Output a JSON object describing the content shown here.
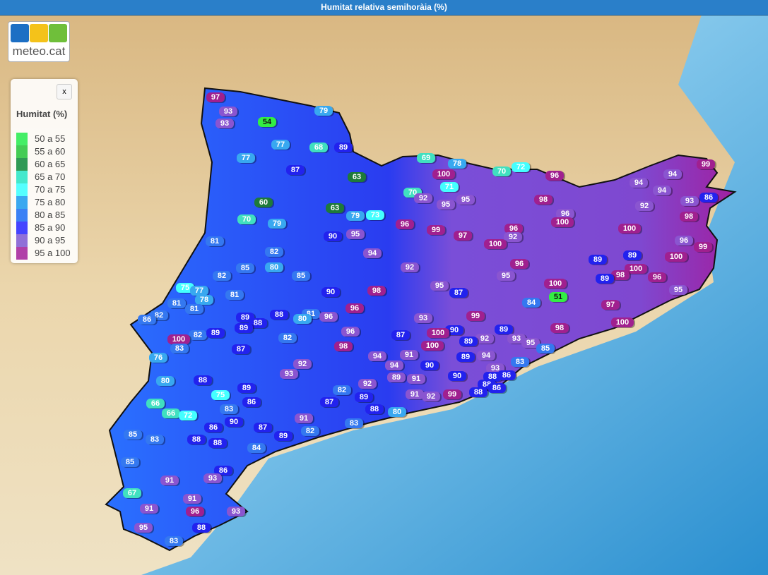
{
  "header": {
    "title": "Humitat relativa semihoràia (%)"
  },
  "logo": {
    "text": "meteo.cat"
  },
  "legend": {
    "close": "x",
    "title": "Humitat (%)",
    "items": [
      {
        "label": "50 a 55",
        "color": "#44ee66"
      },
      {
        "label": "55 a 60",
        "color": "#44cc55"
      },
      {
        "label": "60 a 65",
        "color": "#2f9a55"
      },
      {
        "label": "65 a 70",
        "color": "#44e8cc"
      },
      {
        "label": "70 a 75",
        "color": "#55ffff"
      },
      {
        "label": "75 a 80",
        "color": "#3aa8f0"
      },
      {
        "label": "80 a 85",
        "color": "#3a80f5"
      },
      {
        "label": "85 a 90",
        "color": "#4444ff"
      },
      {
        "label": "90 a 95",
        "color": "#9070d8"
      },
      {
        "label": "95 a 100",
        "color": "#b040a8"
      }
    ]
  },
  "stations": {
    "values": [
      97,
      93,
      93,
      54,
      79,
      77,
      68,
      89,
      77,
      87,
      63,
      69,
      78,
      100,
      70,
      72,
      96,
      99,
      94,
      94,
      94,
      86,
      93,
      92,
      98,
      71,
      70,
      92,
      95,
      95,
      98,
      96,
      100,
      60,
      63,
      79,
      73,
      70,
      79,
      96,
      99,
      97,
      96,
      92,
      100,
      96,
      99,
      90,
      95,
      100,
      81,
      82,
      94,
      100,
      89,
      96,
      89,
      85,
      80,
      92,
      100,
      98,
      82,
      85,
      95,
      89,
      96,
      95,
      100,
      75,
      77,
      81,
      90,
      98,
      87,
      95,
      78,
      51,
      81,
      84,
      97,
      81,
      81,
      88,
      96,
      82,
      86,
      89,
      80,
      96,
      93,
      99,
      88,
      89,
      100,
      98,
      90,
      87,
      100,
      96,
      89,
      82,
      89,
      82,
      92,
      93,
      89,
      100,
      95,
      83,
      87,
      98,
      100,
      85,
      94,
      91,
      89,
      94,
      76,
      83,
      92,
      94,
      90,
      93,
      93,
      89,
      91,
      90,
      88,
      86,
      80,
      88,
      92,
      89,
      88,
      86,
      88,
      82,
      75,
      91,
      92,
      99,
      89,
      86,
      87,
      66,
      83,
      88,
      80,
      66,
      72,
      91,
      90,
      83,
      86,
      87,
      82,
      89,
      85,
      83,
      88,
      88,
      84,
      85,
      86,
      91,
      93,
      67,
      91,
      91,
      96,
      93,
      95,
      88,
      83
    ],
    "colors": [
      "#a0208f",
      "#8a55d0",
      "#8a55d0",
      "#33ee44",
      "#38a8f0",
      "#38a8f0",
      "#40e0c0",
      "#2222ee",
      "#38a8f0",
      "#2222ee",
      "#1e7a3a",
      "#40e0c0",
      "#38a8f0",
      "#a0208f",
      "#40e0c0",
      "#44ffff",
      "#a0208f",
      "#a0208f",
      "#8a55d0",
      "#8a55d0",
      "#8a55d0",
      "#2222ee",
      "#8a55d0",
      "#8a55d0",
      "#a0208f",
      "#44ffff",
      "#40e0c0",
      "#8a55d0",
      "#8a55d0",
      "#8a55d0",
      "#a0208f",
      "#8a55d0",
      "#a0208f",
      "#1e7a3a",
      "#1e7a3a",
      "#38a8f0",
      "#44ffff",
      "#40e0c0",
      "#38a8f0",
      "#a0208f",
      "#a0208f",
      "#a0208f",
      "#a0208f",
      "#8a55d0",
      "#a0208f",
      "#8a55d0",
      "#a0208f",
      "#2222ee",
      "#8a55d0",
      "#a0208f",
      "#3478f0",
      "#3478f0",
      "#8a55d0",
      "#a0208f",
      "#2222ee",
      "#a0208f",
      "#2222ee",
      "#3478f0",
      "#38a8f0",
      "#8a55d0",
      "#a0208f",
      "#a0208f",
      "#3478f0",
      "#3478f0",
      "#8a55d0",
      "#2222ee",
      "#a0208f",
      "#8a55d0",
      "#a0208f",
      "#44ffff",
      "#38a8f0",
      "#3478f0",
      "#2222ee",
      "#a0208f",
      "#2222ee",
      "#8a55d0",
      "#38a8f0",
      "#33ee44",
      "#3478f0",
      "#3478f0",
      "#a0208f",
      "#3478f0",
      "#3478f0",
      "#2222ee",
      "#a0208f",
      "#3478f0",
      "#3478f0",
      "#2222ee",
      "#38a8f0",
      "#8a55d0",
      "#8a55d0",
      "#a0208f",
      "#2222ee",
      "#2222ee",
      "#a0208f",
      "#a0208f",
      "#2222ee",
      "#2222ee",
      "#a0208f",
      "#8a55d0",
      "#2222ee",
      "#3478f0",
      "#2222ee",
      "#3478f0",
      "#8a55d0",
      "#8a55d0",
      "#2222ee",
      "#a0208f",
      "#8a55d0",
      "#3478f0",
      "#2222ee",
      "#a0208f",
      "#a0208f",
      "#3478f0",
      "#8a55d0",
      "#8a55d0",
      "#2222ee",
      "#8a55d0",
      "#38a8f0",
      "#3478f0",
      "#8a55d0",
      "#8a55d0",
      "#2222ee",
      "#8a55d0",
      "#8a55d0",
      "#8a55d0",
      "#8a55d0",
      "#2222ee",
      "#2222ee",
      "#2222ee",
      "#38a8f0",
      "#2222ee",
      "#8a55d0",
      "#2222ee",
      "#2222ee",
      "#2222ee",
      "#2222ee",
      "#3478f0",
      "#44ffff",
      "#8a55d0",
      "#8a55d0",
      "#a0208f",
      "#2222ee",
      "#2222ee",
      "#2222ee",
      "#40e0c0",
      "#3478f0",
      "#2222ee",
      "#38a8f0",
      "#40e0c0",
      "#44ffff",
      "#8a55d0",
      "#2222ee",
      "#3478f0",
      "#2222ee",
      "#2222ee",
      "#3478f0",
      "#2222ee",
      "#3478f0",
      "#3478f0",
      "#2222ee",
      "#2222ee",
      "#3478f0",
      "#3478f0",
      "#2222ee",
      "#8a55d0",
      "#8a55d0",
      "#40e0c0",
      "#8a55d0",
      "#8a55d0",
      "#a0208f",
      "#8a55d0",
      "#8a55d0",
      "#2222ee",
      "#3478f0"
    ]
  }
}
